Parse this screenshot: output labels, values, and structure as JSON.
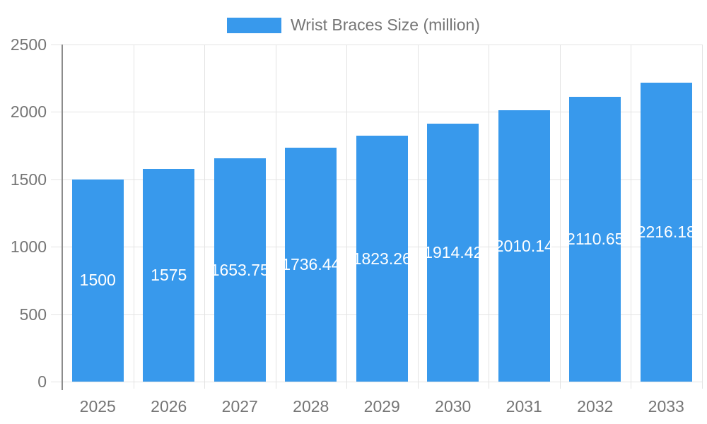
{
  "chart_data": {
    "type": "bar",
    "title": "Wrist Braces Size (million)",
    "categories": [
      "2025",
      "2026",
      "2027",
      "2028",
      "2029",
      "2030",
      "2031",
      "2032",
      "2033"
    ],
    "values": [
      1500,
      1575,
      1653.75,
      1736.44,
      1823.26,
      1914.42,
      2010.14,
      2110.65,
      2216.18
    ],
    "value_labels": [
      "1500",
      "1575",
      "1653.75",
      "1736.44",
      "1823.26",
      "1914.42",
      "2010.14",
      "2110.65",
      "2216.18"
    ],
    "xlabel": "",
    "ylabel": "",
    "ylim": [
      0,
      2500
    ],
    "y_ticks": [
      0,
      500,
      1000,
      1500,
      2000,
      2500
    ],
    "y_tick_labels": [
      "0",
      "500",
      "1000",
      "1500",
      "2000",
      "2500"
    ],
    "grid": true,
    "legend_position": "top-center",
    "value_label_position": "inside-center"
  },
  "colors": {
    "bar": "#3899EC",
    "axis_text": "#757575",
    "legend_text": "#757575",
    "value_label_text": "#FFFFFF",
    "gridline": "#E3E3E3",
    "axis_line": "#8C8C8C",
    "background": "#FFFFFF"
  }
}
